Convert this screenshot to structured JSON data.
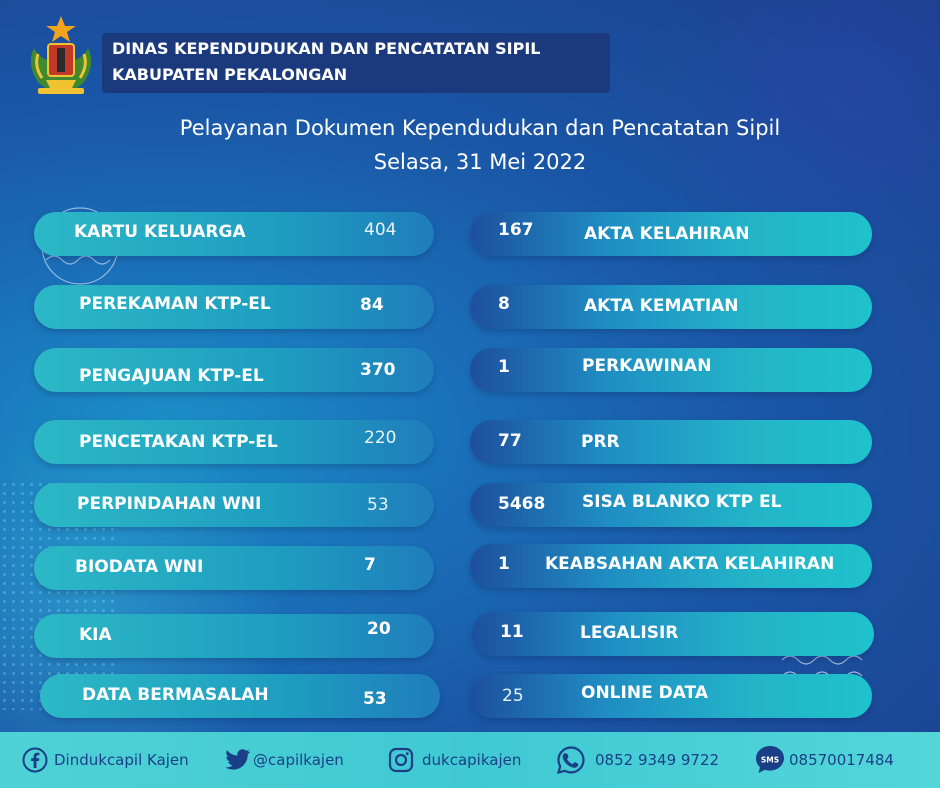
{
  "agency": {
    "line1": "DINAS KEPENDUDUKAN DAN PENCATATAN SIPIL",
    "line2": "KABUPATEN PEKALONGAN"
  },
  "title": {
    "line1": "Pelayanan Dokumen Kependudukan dan Pencatatan Sipil",
    "line2": "Selasa,  31 Mei 2022"
  },
  "left_services": [
    {
      "label": "KARTU KELUARGA",
      "value": "404"
    },
    {
      "label": "PEREKAMAN KTP-EL",
      "value": "84"
    },
    {
      "label": "PENGAJUAN KTP-EL",
      "value": "370"
    },
    {
      "label": "PENCETAKAN KTP-EL",
      "value": "220"
    },
    {
      "label": "PERPINDAHAN WNI",
      "value": "53"
    },
    {
      "label": "BIODATA WNI",
      "value": "7"
    },
    {
      "label": "KIA",
      "value": "20"
    },
    {
      "label": "DATA BERMASALAH",
      "value": "53"
    }
  ],
  "right_services": [
    {
      "label": "AKTA KELAHIRAN",
      "value": "167"
    },
    {
      "label": "AKTA KEMATIAN",
      "value": "8"
    },
    {
      "label": "PERKAWINAN",
      "value": "1"
    },
    {
      "label": "PRR",
      "value": "77"
    },
    {
      "label": "SISA BLANKO KTP EL",
      "value": "5468"
    },
    {
      "label": "KEABSAHAN AKTA KELAHIRAN",
      "value": "1"
    },
    {
      "label": "LEGALISIR",
      "value": "11"
    },
    {
      "label": "ONLINE DATA",
      "value": "25"
    }
  ],
  "footer": {
    "facebook": "Dindukcapil Kajen",
    "twitter": "@capilkajen",
    "instagram": "dukcapikajen",
    "whatsapp": "0852 9349 9722",
    "sms": "08570017484",
    "sms_badge": "SMS"
  },
  "icons": [
    "emblem-logo",
    "facebook-icon",
    "twitter-icon",
    "instagram-icon",
    "whatsapp-icon",
    "sms-icon"
  ],
  "colors": {
    "accent": "#2cb8c6",
    "navy": "#1b3a7e",
    "footer_text": "#1b3f86",
    "footer_bg": "#4fd2d6"
  }
}
